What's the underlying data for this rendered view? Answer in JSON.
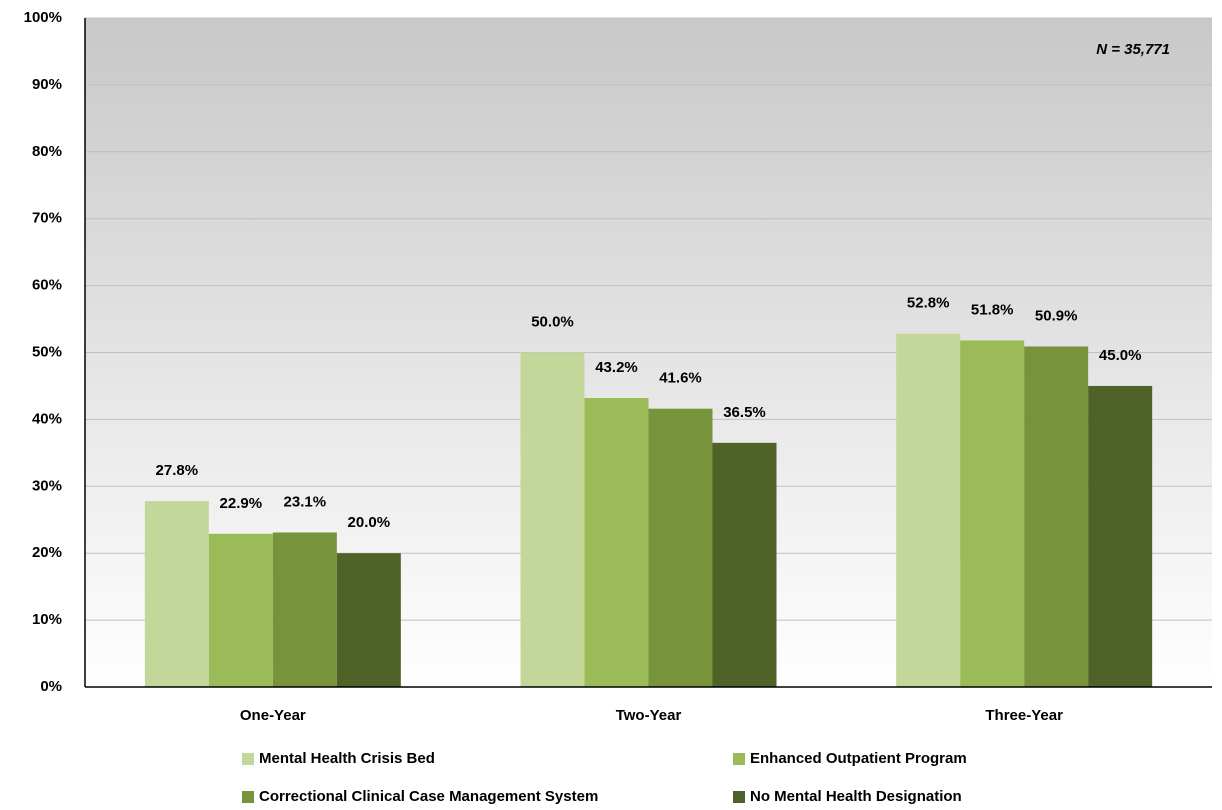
{
  "chart_data": {
    "type": "bar",
    "annotation": "N = 35,771",
    "categories": [
      "One-Year",
      "Two-Year",
      "Three-Year"
    ],
    "series": [
      {
        "name": "Mental Health Crisis Bed",
        "color": "#c4d79b",
        "values": [
          27.8,
          50.0,
          52.8
        ],
        "value_labels": [
          "27.8%",
          "50.0%",
          "52.8%"
        ]
      },
      {
        "name": "Enhanced Outpatient Program",
        "color": "#9bbb59",
        "values": [
          22.9,
          43.2,
          51.8
        ],
        "value_labels": [
          "22.9%",
          "43.2%",
          "51.8%"
        ]
      },
      {
        "name": "Correctional Clinical Case Management System",
        "color": "#77933c",
        "values": [
          23.1,
          41.6,
          50.9
        ],
        "value_labels": [
          "23.1%",
          "41.6%",
          "50.9%"
        ]
      },
      {
        "name": "No Mental Health Designation",
        "color": "#4f6228",
        "values": [
          20.0,
          36.5,
          45.0
        ],
        "value_labels": [
          "20.0%",
          "36.5%",
          "45.0%"
        ]
      }
    ],
    "ylim": [
      0,
      100
    ],
    "yticks": [
      {
        "value": 0,
        "label": "0%"
      },
      {
        "value": 10,
        "label": "10%"
      },
      {
        "value": 20,
        "label": "20%"
      },
      {
        "value": 30,
        "label": "30%"
      },
      {
        "value": 40,
        "label": "40%"
      },
      {
        "value": 50,
        "label": "50%"
      },
      {
        "value": 60,
        "label": "60%"
      },
      {
        "value": 70,
        "label": "70%"
      },
      {
        "value": 80,
        "label": "80%"
      },
      {
        "value": 90,
        "label": "90%"
      },
      {
        "value": 100,
        "label": "100%"
      }
    ],
    "grid": true
  }
}
